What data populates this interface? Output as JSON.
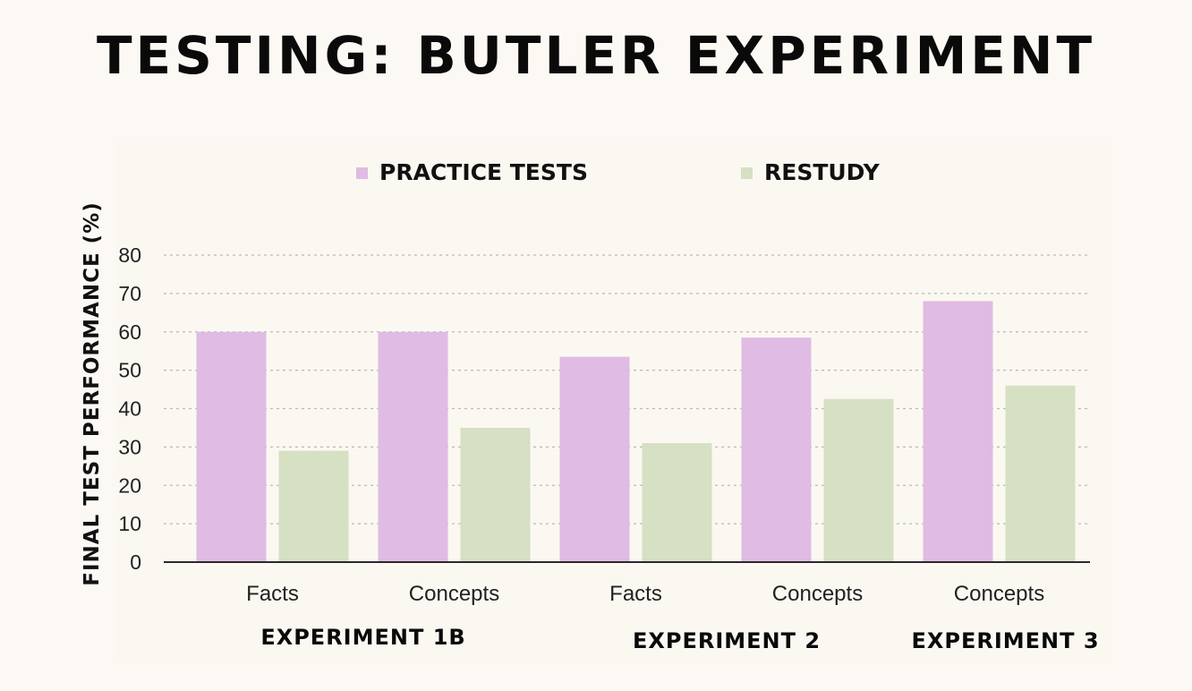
{
  "page": {
    "title": "TESTING: BUTLER EXPERIMENT",
    "background": "#fcf9f4"
  },
  "chart_data": {
    "type": "bar",
    "title": "",
    "xlabel": "",
    "ylabel": "FINAL TEST PERFORMANCE (%)",
    "ylim": [
      0,
      80
    ],
    "yticks": [
      0,
      10,
      20,
      30,
      40,
      50,
      60,
      70,
      80
    ],
    "grid": true,
    "grid_style": "dotted",
    "legend_position": "top",
    "categories": [
      "Facts",
      "Concepts",
      "Facts",
      "Concepts",
      "Concepts"
    ],
    "groups": [
      {
        "label": "EXPERIMENT 1B",
        "categories": [
          0,
          1
        ]
      },
      {
        "label": "EXPERIMENT 2",
        "categories": [
          2,
          3
        ]
      },
      {
        "label": "EXPERIMENT 3",
        "categories": [
          4
        ]
      }
    ],
    "series": [
      {
        "name": "PRACTICE TESTS",
        "color": "#e0bbe3",
        "values": [
          60,
          60,
          53.5,
          58.5,
          68
        ]
      },
      {
        "name": "RESTUDY",
        "color": "#d6e0c3",
        "values": [
          29,
          35,
          31,
          42.5,
          46
        ]
      }
    ]
  }
}
